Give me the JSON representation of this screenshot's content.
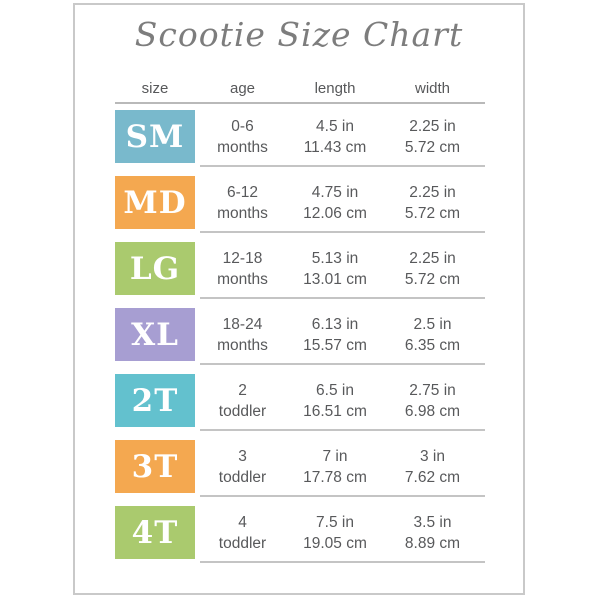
{
  "title": "Scootie Size Chart",
  "table": {
    "headers": {
      "size": "size",
      "age": "age",
      "length": "length",
      "width": "width"
    },
    "rows": [
      {
        "size": "SM",
        "badge_color": "#79b9cc",
        "age": [
          "0-6",
          "months"
        ],
        "length": [
          "4.5 in",
          "11.43 cm"
        ],
        "width": [
          "2.25 in",
          "5.72 cm"
        ]
      },
      {
        "size": "MD",
        "badge_color": "#f4a850",
        "age": [
          "6-12",
          "months"
        ],
        "length": [
          "4.75 in",
          "12.06 cm"
        ],
        "width": [
          "2.25 in",
          "5.72 cm"
        ]
      },
      {
        "size": "LG",
        "badge_color": "#aaca6e",
        "age": [
          "12-18",
          "months"
        ],
        "length": [
          "5.13 in",
          "13.01 cm"
        ],
        "width": [
          "2.25 in",
          "5.72 cm"
        ]
      },
      {
        "size": "XL",
        "badge_color": "#a79ed2",
        "age": [
          "18-24",
          "months"
        ],
        "length": [
          "6.13 in",
          "15.57 cm"
        ],
        "width": [
          "2.5 in",
          "6.35 cm"
        ]
      },
      {
        "size": "2T",
        "badge_color": "#63c1ce",
        "age": [
          "2",
          "toddler"
        ],
        "length": [
          "6.5 in",
          "16.51 cm"
        ],
        "width": [
          "2.75 in",
          "6.98 cm"
        ]
      },
      {
        "size": "3T",
        "badge_color": "#f4a850",
        "age": [
          "3",
          "toddler"
        ],
        "length": [
          "7 in",
          "17.78 cm"
        ],
        "width": [
          "3 in",
          "7.62 cm"
        ]
      },
      {
        "size": "4T",
        "badge_color": "#aaca6e",
        "age": [
          "4",
          "toddler"
        ],
        "length": [
          "7.5 in",
          "19.05 cm"
        ],
        "width": [
          "3.5 in",
          "8.89 cm"
        ]
      }
    ]
  },
  "colors": {
    "frame_border": "#c9c9c9",
    "title_text": "#7d7d7d",
    "header_text": "#57585a",
    "cell_text": "#58595b",
    "divider_line": "#c4c4c4",
    "header_line": "#b9b9b9",
    "badge_text": "#ffffff",
    "badge_teal_blue": "#79b9cc",
    "badge_orange": "#f4a850",
    "badge_green": "#aaca6e",
    "badge_purple": "#a79ed2",
    "badge_teal": "#63c1ce"
  },
  "chart_data": {
    "type": "table",
    "title": "Scootie Size Chart",
    "columns": [
      "size",
      "age",
      "length",
      "width"
    ],
    "rows": [
      [
        "SM",
        "0-6 months",
        "4.5 in / 11.43 cm",
        "2.25 in / 5.72 cm"
      ],
      [
        "MD",
        "6-12 months",
        "4.75 in / 12.06 cm",
        "2.25 in / 5.72 cm"
      ],
      [
        "LG",
        "12-18 months",
        "5.13 in / 13.01 cm",
        "2.25 in / 5.72 cm"
      ],
      [
        "XL",
        "18-24 months",
        "6.13 in / 15.57 cm",
        "2.5 in / 6.35 cm"
      ],
      [
        "2T",
        "2 toddler",
        "6.5 in / 16.51 cm",
        "2.75 in / 6.98 cm"
      ],
      [
        "3T",
        "3 toddler",
        "7 in / 17.78 cm",
        "3 in / 7.62 cm"
      ],
      [
        "4T",
        "4 toddler",
        "7.5 in / 19.05 cm",
        "3.5 in / 8.89 cm"
      ]
    ]
  }
}
